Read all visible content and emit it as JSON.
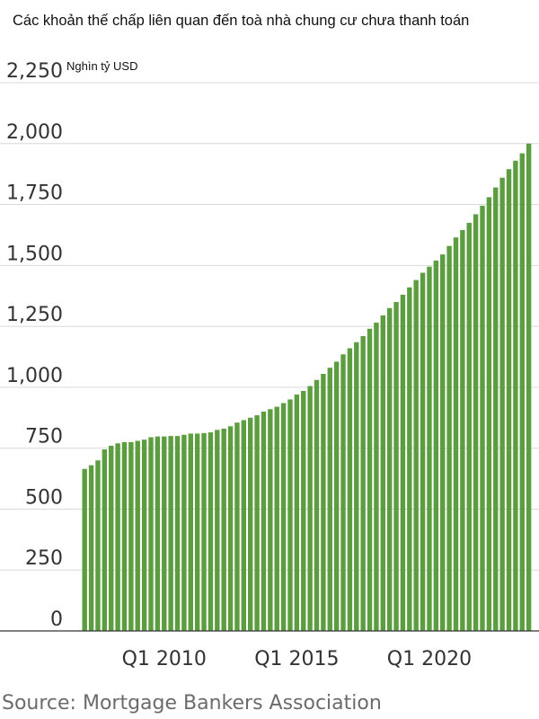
{
  "chart_data": {
    "type": "bar",
    "title": "Các khoản thế chấp liên quan đến toà nhà chung cư chưa thanh toán",
    "unit_label": "Nghìn tỷ USD",
    "source": "Source: Mortgage Bankers Association",
    "ylim": [
      0,
      2250
    ],
    "yticks": [
      {
        "value": 0,
        "label": "0"
      },
      {
        "value": 250,
        "label": "250"
      },
      {
        "value": 500,
        "label": "500"
      },
      {
        "value": 750,
        "label": "750"
      },
      {
        "value": 1000,
        "label": "1,000"
      },
      {
        "value": 1250,
        "label": "1,250"
      },
      {
        "value": 1500,
        "label": "1,500"
      },
      {
        "value": 1750,
        "label": "1,750"
      },
      {
        "value": 2000,
        "label": "2,000"
      },
      {
        "value": 2250,
        "label": "2,250"
      }
    ],
    "xticks": [
      {
        "index": 12,
        "label": "Q1 2010"
      },
      {
        "index": 32,
        "label": "Q1 2015"
      },
      {
        "index": 52,
        "label": "Q1 2020"
      }
    ],
    "grid": true,
    "bar_color": "#5c9e3f",
    "values": [
      665,
      680,
      700,
      745,
      760,
      770,
      775,
      775,
      780,
      785,
      795,
      798,
      798,
      800,
      800,
      805,
      810,
      810,
      812,
      815,
      825,
      830,
      840,
      855,
      865,
      875,
      885,
      900,
      910,
      920,
      935,
      950,
      970,
      985,
      1005,
      1030,
      1055,
      1080,
      1105,
      1135,
      1160,
      1185,
      1210,
      1240,
      1265,
      1295,
      1325,
      1350,
      1380,
      1410,
      1440,
      1470,
      1495,
      1520,
      1545,
      1580,
      1615,
      1645,
      1675,
      1710,
      1745,
      1780,
      1820,
      1860,
      1895,
      1930,
      1960,
      2000
    ]
  }
}
